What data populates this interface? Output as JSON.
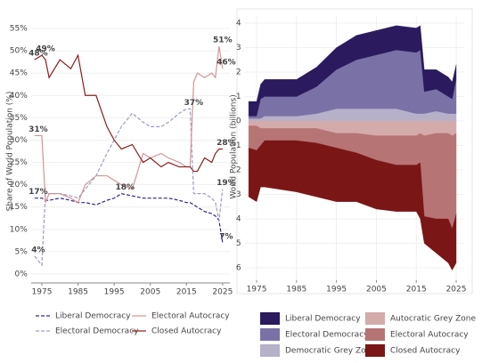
{
  "chart_data": [
    {
      "type": "line",
      "y_label": "Share of World Population (%)",
      "x": [
        1973,
        1974,
        1975,
        1976,
        1977,
        1980,
        1983,
        1985,
        1987,
        1990,
        1993,
        1995,
        1997,
        2000,
        2003,
        2005,
        2008,
        2010,
        2013,
        2015,
        2016,
        2017,
        2018,
        2020,
        2022,
        2023,
        2024,
        2025
      ],
      "series": [
        {
          "name": "Liberal Democracy",
          "color": "#2d2a8a",
          "dash": true,
          "values": [
            17,
            17,
            17,
            16.5,
            16.5,
            17,
            16.5,
            16,
            16,
            15.5,
            16.5,
            17,
            18,
            17.5,
            17,
            17,
            17,
            17,
            16.5,
            16,
            16,
            15.5,
            15,
            14,
            13.5,
            13,
            12,
            7
          ]
        },
        {
          "name": "Electoral Democracy",
          "color": "#9d9cc4",
          "dash": true,
          "values": [
            4,
            3,
            2,
            18,
            18,
            18,
            17.5,
            17,
            19,
            22,
            27,
            30,
            33,
            36,
            34,
            33,
            33,
            34,
            36,
            37,
            37,
            18,
            18,
            18,
            17,
            16,
            12,
            19
          ]
        },
        {
          "name": "Electoral Autocracy",
          "color": "#d29595",
          "dash": false,
          "values": [
            31,
            31,
            31,
            16,
            18,
            18,
            17,
            16,
            20,
            22,
            22,
            21,
            20,
            19,
            27,
            26,
            27,
            26,
            25,
            24,
            24,
            43,
            45,
            44,
            45,
            44,
            51,
            46
          ]
        },
        {
          "name": "Closed Autocracy",
          "color": "#8e1c1c",
          "dash": false,
          "values": [
            48,
            48.5,
            49,
            48,
            44,
            48,
            46,
            49,
            40,
            40,
            33,
            30,
            28,
            29,
            25,
            26,
            24,
            25,
            24,
            24,
            24,
            23,
            23,
            26,
            25,
            27,
            28,
            28
          ]
        }
      ],
      "annotations": [
        {
          "x": 1975,
          "value": 49,
          "label": "49%"
        },
        {
          "x": 1973,
          "value": 48,
          "label": "48%"
        },
        {
          "x": 1973,
          "value": 31,
          "label": "31%"
        },
        {
          "x": 1973,
          "value": 17,
          "label": "17%"
        },
        {
          "x": 1973,
          "value": 4,
          "label": "4%"
        },
        {
          "x": 1997,
          "value": 18,
          "label": "18%"
        },
        {
          "x": 2016,
          "value": 37,
          "label": "37%"
        },
        {
          "x": 2024,
          "value": 51,
          "label": "51%"
        },
        {
          "x": 2025,
          "value": 46,
          "label": "46%"
        },
        {
          "x": 2025,
          "value": 28,
          "label": "28%"
        },
        {
          "x": 2025,
          "value": 19,
          "label": "19%"
        },
        {
          "x": 2025,
          "value": 7,
          "label": "7%"
        }
      ],
      "xlim": [
        1972,
        2027
      ],
      "xticks": [
        1975,
        1985,
        1995,
        2005,
        2015,
        2025
      ],
      "ylim": [
        -2,
        56
      ],
      "yticks": [
        {
          "value": 0,
          "label": "0%"
        },
        {
          "value": 5,
          "label": "5%"
        },
        {
          "value": 10,
          "label": "10%"
        },
        {
          "value": 15,
          "label": "15%"
        },
        {
          "value": 20,
          "label": "20%"
        },
        {
          "value": 25,
          "label": "25%"
        },
        {
          "value": 30,
          "label": "30%"
        },
        {
          "value": 35,
          "label": "35%"
        },
        {
          "value": 40,
          "label": "40%"
        },
        {
          "value": 45,
          "label": "45%"
        },
        {
          "value": 50,
          "label": "50%"
        },
        {
          "value": 55,
          "label": "55%"
        }
      ],
      "grid": true
    },
    {
      "type": "stacked_area",
      "y_label": "World Population (billions)",
      "x": [
        1973,
        1975,
        1976,
        1977,
        1985,
        1990,
        1995,
        2000,
        2005,
        2010,
        2015,
        2016,
        2017,
        2020,
        2023,
        2024,
        2025
      ],
      "series": [
        {
          "name": "Liberal Democracy",
          "color": "#2b1a5e",
          "values": [
            0.6,
            0.6,
            0.6,
            0.7,
            0.7,
            0.8,
            0.9,
            1.0,
            1.0,
            1.0,
            1.0,
            1.0,
            0.9,
            0.8,
            0.8,
            0.7,
            0.6
          ]
        },
        {
          "name": "Electoral Democracy",
          "color": "#7a72a6",
          "values": [
            0.1,
            0.1,
            0.8,
            0.8,
            0.8,
            1.1,
            1.6,
            2.0,
            2.2,
            2.4,
            2.5,
            2.6,
            0.9,
            0.9,
            0.7,
            0.6,
            1.4
          ]
        },
        {
          "name": "Democratic Grey Zone",
          "color": "#b6b0c9",
          "values": [
            0.1,
            0.1,
            0.1,
            0.2,
            0.2,
            0.3,
            0.5,
            0.5,
            0.5,
            0.5,
            0.3,
            0.3,
            0.3,
            0.4,
            0.3,
            0.3,
            0.3
          ]
        },
        {
          "name": "Autocratic Grey Zone",
          "color": "#d4abab",
          "values": [
            -0.2,
            -0.2,
            -0.3,
            -0.3,
            -0.3,
            -0.3,
            -0.5,
            -0.5,
            -0.6,
            -0.6,
            -0.6,
            -0.5,
            -0.6,
            -0.5,
            -0.5,
            -0.6,
            -0.5
          ]
        },
        {
          "name": "Electoral Autocracy",
          "color": "#b77474",
          "values": [
            -0.9,
            -1.0,
            -0.7,
            -0.5,
            -0.5,
            -0.6,
            -0.6,
            -0.8,
            -1.0,
            -1.2,
            -1.2,
            -1.2,
            -3.3,
            -3.5,
            -3.5,
            -3.8,
            -3.3
          ]
        },
        {
          "name": "Closed Autocracy",
          "color": "#7a1616",
          "values": [
            -2.0,
            -2.1,
            -1.7,
            -1.9,
            -2.1,
            -2.2,
            -2.2,
            -2.0,
            -2.0,
            -1.9,
            -1.9,
            -2.3,
            -1.1,
            -1.4,
            -1.8,
            -1.7,
            -2.0
          ]
        }
      ],
      "xlim": [
        1972,
        2027
      ],
      "xticks": [
        1975,
        1985,
        1995,
        2005,
        2015,
        2025
      ],
      "ylim": [
        -6.5,
        4.3
      ],
      "yticks": [
        {
          "value": 4,
          "label": "4"
        },
        {
          "value": 3,
          "label": "3"
        },
        {
          "value": 2,
          "label": "2"
        },
        {
          "value": 1,
          "label": "1"
        },
        {
          "value": 0,
          "label": "0"
        },
        {
          "value": -1,
          "label": "1"
        },
        {
          "value": -2,
          "label": "2"
        },
        {
          "value": -3,
          "label": "3"
        },
        {
          "value": -4,
          "label": "4"
        },
        {
          "value": -5,
          "label": "5"
        },
        {
          "value": -6,
          "label": "6"
        }
      ],
      "grid": true
    }
  ]
}
